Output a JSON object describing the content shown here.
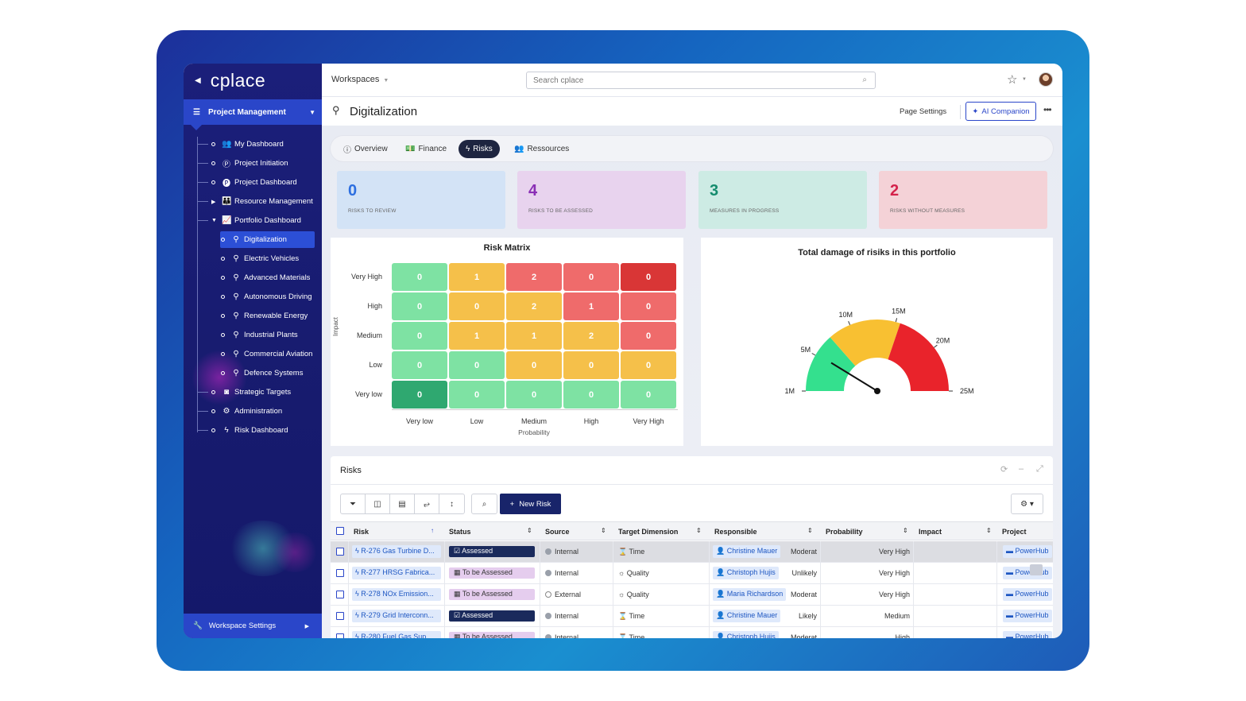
{
  "sidebar": {
    "logo": "cplace",
    "module": "Project Management",
    "items": [
      {
        "label": "My Dashboard",
        "icon": "users-icon",
        "glyph": "👥"
      },
      {
        "label": "Project Initiation",
        "icon": "p-circle-icon",
        "glyph": "Ⓟ"
      },
      {
        "label": "Project Dashboard",
        "icon": "p-filled-icon",
        "glyph": "🅟"
      },
      {
        "label": "Resource Management",
        "icon": "team-icon",
        "glyph": "👪"
      },
      {
        "label": "Portfolio Dashboard",
        "icon": "chart-line-icon",
        "glyph": "📈"
      },
      {
        "label": "Digitalization",
        "icon": "pin-icon",
        "glyph": "⚲"
      },
      {
        "label": "Electric Vehicles",
        "icon": "pin-icon",
        "glyph": "⚲"
      },
      {
        "label": "Advanced Materials",
        "icon": "pin-icon",
        "glyph": "⚲"
      },
      {
        "label": "Autonomous Driving",
        "icon": "pin-icon",
        "glyph": "⚲"
      },
      {
        "label": "Renewable Energy",
        "icon": "pin-icon",
        "glyph": "⚲"
      },
      {
        "label": "Industrial Plants",
        "icon": "pin-icon",
        "glyph": "⚲"
      },
      {
        "label": "Commercial Aviation",
        "icon": "pin-icon",
        "glyph": "⚲"
      },
      {
        "label": "Defence Systems",
        "icon": "pin-icon",
        "glyph": "⚲"
      },
      {
        "label": "Strategic Targets",
        "icon": "target-icon",
        "glyph": "◙"
      },
      {
        "label": "Administration",
        "icon": "gears-icon",
        "glyph": "⚙"
      },
      {
        "label": "Risk Dashboard",
        "icon": "bolt-icon",
        "glyph": "ϟ"
      }
    ],
    "workspace_settings": "Workspace Settings"
  },
  "topbar": {
    "workspaces": "Workspaces",
    "search_placeholder": "Search cplace"
  },
  "page": {
    "title": "Digitalization",
    "settings": "Page Settings",
    "ai": "AI Companion"
  },
  "tabs": [
    {
      "label": "Overview",
      "glyph": "ⓘ"
    },
    {
      "label": "Finance",
      "glyph": "💵"
    },
    {
      "label": "Risks",
      "glyph": "ϟ"
    },
    {
      "label": "Ressources",
      "glyph": "👥"
    }
  ],
  "kpis": [
    {
      "value": "0",
      "label": "RISKS TO REVIEW",
      "color": "#2d6fe0",
      "bg": "#d3e3f6"
    },
    {
      "value": "4",
      "label": "RISKS TO BE ASSESSED",
      "color": "#8a2fb5",
      "bg": "#e8d3ee"
    },
    {
      "value": "3",
      "label": "MEASURES IN PROGRESS",
      "color": "#158c6e",
      "bg": "#cdebe4"
    },
    {
      "value": "2",
      "label": "RISKS WITHOUT MEASURES",
      "color": "#d4234b",
      "bg": "#f4d2d7"
    }
  ],
  "risk_matrix": {
    "title": "Risk Matrix",
    "y_axis": "Impact",
    "x_axis": "Probability",
    "rows": [
      "Very High",
      "High",
      "Medium",
      "Low",
      "Very low"
    ],
    "cols": [
      "Very low",
      "Low",
      "Medium",
      "High",
      "Very High"
    ],
    "values": [
      [
        0,
        1,
        2,
        0,
        0
      ],
      [
        0,
        0,
        2,
        1,
        0
      ],
      [
        0,
        1,
        1,
        2,
        0
      ],
      [
        0,
        0,
        0,
        0,
        0
      ],
      [
        0,
        0,
        0,
        0,
        0
      ]
    ],
    "colors": [
      [
        "#7ee2a3",
        "#f5c04a",
        "#ef6b6b",
        "#ef6b6b",
        "#d93636"
      ],
      [
        "#7ee2a3",
        "#f5c04a",
        "#f5c04a",
        "#ef6b6b",
        "#ef6b6b"
      ],
      [
        "#7ee2a3",
        "#f5c04a",
        "#f5c04a",
        "#f5c04a",
        "#ef6b6b"
      ],
      [
        "#7ee2a3",
        "#7ee2a3",
        "#f5c04a",
        "#f5c04a",
        "#f5c04a"
      ],
      [
        "#2fa870",
        "#7ee2a3",
        "#7ee2a3",
        "#7ee2a3",
        "#7ee2a3"
      ]
    ]
  },
  "gauge": {
    "title": "Total damage of risiks in this portfolio",
    "ticks": [
      "1M",
      "5M",
      "10M",
      "15M",
      "20M",
      "25M"
    ],
    "bands": [
      {
        "from": 1,
        "to": 7.5,
        "color": "#34e08e"
      },
      {
        "from": 7.5,
        "to": 15.5,
        "color": "#f8c032"
      },
      {
        "from": 15.5,
        "to": 25,
        "color": "#e9232b"
      }
    ],
    "value": 5.2,
    "min": 1,
    "max": 25
  },
  "risks": {
    "title": "Risks",
    "new_risk": "New Risk",
    "columns": [
      "Risk",
      "Status",
      "Source",
      "Target Dimension",
      "Responsible",
      "Probability",
      "Impact",
      "Project"
    ],
    "rows": [
      {
        "risk": "R-276 Gas Turbine D...",
        "status": "Assessed",
        "status_type": "assessed",
        "source": "Internal",
        "target": "Time",
        "target_glyph": "⌛",
        "responsible": "Christine Mauer",
        "probability": "Moderat",
        "impact": "Very High",
        "project": "PowerHub"
      },
      {
        "risk": "R-277 HRSG Fabrica...",
        "status": "To be Assessed",
        "status_type": "tba",
        "source": "Internal",
        "target": "Quality",
        "target_glyph": "☼",
        "responsible": "Christoph Hujis",
        "probability": "Unlikely",
        "impact": "Very High",
        "project": "PowerHub"
      },
      {
        "risk": "R-278 NOx Emission...",
        "status": "To be Assessed",
        "status_type": "tba",
        "source": "External",
        "target": "Quality",
        "target_glyph": "☼",
        "responsible": "Maria Richardson",
        "probability": "Moderat",
        "impact": "Very High",
        "project": "PowerHub"
      },
      {
        "risk": "R-279 Grid Interconn...",
        "status": "Assessed",
        "status_type": "assessed",
        "source": "Internal",
        "target": "Time",
        "target_glyph": "⌛",
        "responsible": "Christine Mauer",
        "probability": "Likely",
        "impact": "Medium",
        "project": "PowerHub"
      },
      {
        "risk": "R-280 Fuel Gas Sup...",
        "status": "To be Assessed",
        "status_type": "tba",
        "source": "Internal",
        "target": "Time",
        "target_glyph": "⌛",
        "responsible": "Christoph Hujis",
        "probability": "Moderat",
        "impact": "High",
        "project": "PowerHub"
      }
    ]
  }
}
